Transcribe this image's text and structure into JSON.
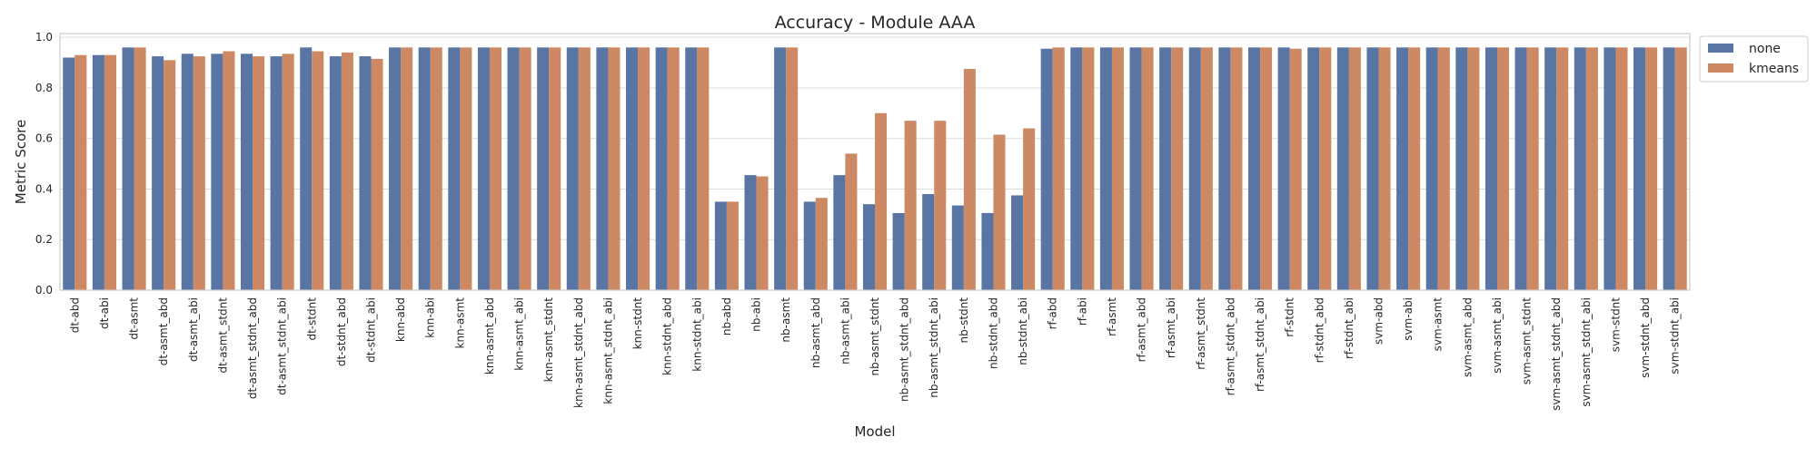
{
  "chart_data": {
    "type": "bar",
    "title": "Accuracy - Module AAA",
    "xlabel": "Model",
    "ylabel": "Metric Score",
    "ylim": [
      0,
      1.0
    ],
    "yticks": [
      "0.0",
      "0.2",
      "0.4",
      "0.6",
      "0.8",
      "1.0"
    ],
    "grid": true,
    "legend_position": "outside-top-right",
    "categories": [
      "dt-abd",
      "dt-abi",
      "dt-asmt",
      "dt-asmt_abd",
      "dt-asmt_abi",
      "dt-asmt_stdnt",
      "dt-asmt_stdnt_abd",
      "dt-asmt_stdnt_abi",
      "dt-stdnt",
      "dt-stdnt_abd",
      "dt-stdnt_abi",
      "knn-abd",
      "knn-abi",
      "knn-asmt",
      "knn-asmt_abd",
      "knn-asmt_abi",
      "knn-asmt_stdnt",
      "knn-asmt_stdnt_abd",
      "knn-asmt_stdnt_abi",
      "knn-stdnt",
      "knn-stdnt_abd",
      "knn-stdnt_abi",
      "nb-abd",
      "nb-abi",
      "nb-asmt",
      "nb-asmt_abd",
      "nb-asmt_abi",
      "nb-asmt_stdnt",
      "nb-asmt_stdnt_abd",
      "nb-asmt_stdnt_abi",
      "nb-stdnt",
      "nb-stdnt_abd",
      "nb-stdnt_abi",
      "rf-abd",
      "rf-abi",
      "rf-asmt",
      "rf-asmt_abd",
      "rf-asmt_abi",
      "rf-asmt_stdnt",
      "rf-asmt_stdnt_abd",
      "rf-asmt_stdnt_abi",
      "rf-stdnt",
      "rf-stdnt_abd",
      "rf-stdnt_abi",
      "svm-abd",
      "svm-abi",
      "svm-asmt",
      "svm-asmt_abd",
      "svm-asmt_abi",
      "svm-asmt_stdnt",
      "svm-asmt_stdnt_abd",
      "svm-asmt_stdnt_abi",
      "svm-stdnt",
      "svm-stdnt_abd",
      "svm-stdnt_abi"
    ],
    "series": [
      {
        "name": "none",
        "color": "#5975a4",
        "values": [
          0.92,
          0.93,
          0.96,
          0.925,
          0.935,
          0.935,
          0.935,
          0.925,
          0.96,
          0.925,
          0.925,
          0.96,
          0.96,
          0.96,
          0.96,
          0.96,
          0.96,
          0.96,
          0.96,
          0.96,
          0.96,
          0.96,
          0.35,
          0.455,
          0.96,
          0.35,
          0.455,
          0.34,
          0.305,
          0.38,
          0.335,
          0.305,
          0.375,
          0.955,
          0.96,
          0.96,
          0.96,
          0.96,
          0.96,
          0.96,
          0.96,
          0.96,
          0.96,
          0.96,
          0.96,
          0.96,
          0.96,
          0.96,
          0.96,
          0.96,
          0.96,
          0.96,
          0.96,
          0.96,
          0.96
        ]
      },
      {
        "name": "kmeans",
        "color": "#cc8963",
        "values": [
          0.93,
          0.93,
          0.96,
          0.91,
          0.925,
          0.945,
          0.925,
          0.935,
          0.945,
          0.94,
          0.915,
          0.96,
          0.96,
          0.96,
          0.96,
          0.96,
          0.96,
          0.96,
          0.96,
          0.96,
          0.96,
          0.96,
          0.35,
          0.45,
          0.96,
          0.365,
          0.54,
          0.7,
          0.67,
          0.67,
          0.875,
          0.615,
          0.64,
          0.96,
          0.96,
          0.96,
          0.96,
          0.96,
          0.96,
          0.96,
          0.96,
          0.955,
          0.96,
          0.96,
          0.96,
          0.96,
          0.96,
          0.96,
          0.96,
          0.96,
          0.96,
          0.96,
          0.96,
          0.96,
          0.96
        ]
      }
    ]
  }
}
